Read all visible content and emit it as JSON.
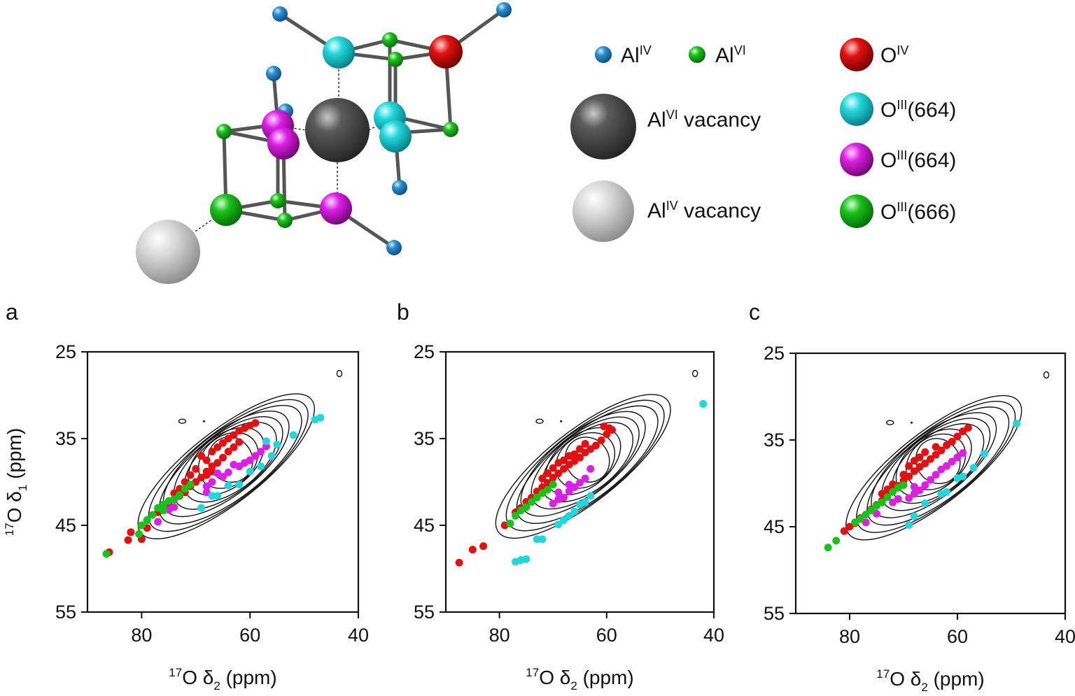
{
  "legend": {
    "items": [
      {
        "key": "al_iv",
        "label": "Al",
        "sup": "IV",
        "suffix": "",
        "color": "#2a8fd0"
      },
      {
        "key": "al_vi",
        "label": "Al",
        "sup": "VI",
        "suffix": "",
        "color": "#1fc41f"
      },
      {
        "key": "al_vi_vac",
        "label": "Al",
        "sup": "VI",
        "suffix": " vacancy",
        "color": "#5a5a5a"
      },
      {
        "key": "al_iv_vac",
        "label": "Al",
        "sup": "IV",
        "suffix": " vacancy",
        "color": "#d4d4d4"
      },
      {
        "key": "o_iv",
        "label": "O",
        "sup": "IV",
        "suffix": "",
        "color": "#e21010"
      },
      {
        "key": "o_iii_664a",
        "label": "O",
        "sup": "III",
        "suffix": "(664)",
        "color": "#21d6dc"
      },
      {
        "key": "o_iii_664b",
        "label": "O",
        "sup": "III",
        "suffix": "(664)",
        "color": "#dc1fe4"
      },
      {
        "key": "o_iii_666",
        "label": "O",
        "sup": "III",
        "suffix": "(666)",
        "color": "#19c219"
      }
    ]
  },
  "axis_labels": {
    "x_iso": "17",
    "x_sym": "O δ",
    "x_sub": "2",
    "x_unit": " (ppm)",
    "y_iso": "17",
    "y_sym": "O δ",
    "y_sub": "1",
    "y_unit": " (ppm)"
  },
  "chart_data": [
    {
      "type": "scatter",
      "panel": "a",
      "xlim": [
        90,
        40
      ],
      "ylim": [
        25,
        55
      ],
      "x_ticks": [
        "80",
        "60",
        "40"
      ],
      "y_ticks": [
        "25",
        "35",
        "45",
        "55"
      ],
      "xlabel": "17O δ2 (ppm)",
      "ylabel": "17O δ1 (ppm)",
      "contours": {
        "x0": 64,
        "y0": 38.2,
        "rx": 20,
        "ry": 2.6,
        "angle": -38,
        "levels": 9
      },
      "series": [
        {
          "color": "#e21010",
          "points": [
            [
              86,
              48.1
            ],
            [
              82,
              45.8
            ],
            [
              79,
              45.3
            ],
            [
              80,
              46.6
            ],
            [
              82.5,
              46.7
            ],
            [
              77,
              43.5
            ],
            [
              75,
              42.6
            ],
            [
              74,
              42.0
            ],
            [
              73,
              41.6
            ],
            [
              72,
              41.2
            ],
            [
              71,
              40.5
            ],
            [
              70,
              40.0
            ],
            [
              69,
              39.5
            ],
            [
              68,
              38.8
            ],
            [
              67,
              38.2
            ],
            [
              66,
              37.8
            ],
            [
              70,
              38.5
            ],
            [
              68,
              37.5
            ],
            [
              69,
              37.0
            ],
            [
              67,
              36.5
            ],
            [
              66,
              36.0
            ],
            [
              65,
              35.5
            ],
            [
              64,
              35.0
            ],
            [
              63,
              34.6
            ],
            [
              62,
              34.1
            ],
            [
              61,
              33.8
            ],
            [
              60,
              33.5
            ],
            [
              59,
              33.2
            ],
            [
              71,
              39.2
            ],
            [
              72,
              40.0
            ],
            [
              65,
              37.2
            ],
            [
              64,
              36.5
            ],
            [
              67,
              38.8
            ],
            [
              68,
              39.2
            ],
            [
              73,
              40.8
            ],
            [
              74,
              41.3
            ],
            [
              63,
              36.0
            ],
            [
              62,
              35.4
            ]
          ]
        },
        {
          "color": "#dc1fe4",
          "points": [
            [
              77,
              44.6
            ],
            [
              75,
              43.2
            ],
            [
              74,
              42.9
            ],
            [
              68,
              40.5
            ],
            [
              67,
              40.0
            ],
            [
              65,
              39.4
            ],
            [
              64,
              38.9
            ],
            [
              62,
              38.2
            ],
            [
              61,
              37.8
            ],
            [
              60,
              37.5
            ],
            [
              59,
              37.0
            ],
            [
              58,
              36.5
            ],
            [
              57,
              35.9
            ],
            [
              66,
              39.0
            ],
            [
              63,
              38.0
            ],
            [
              68,
              41.2
            ]
          ]
        },
        {
          "color": "#21d6dc",
          "points": [
            [
              69,
              43.0
            ],
            [
              67,
              41.6
            ],
            [
              66,
              41.6
            ],
            [
              64,
              40.4
            ],
            [
              62,
              40.3
            ],
            [
              60,
              38.8
            ],
            [
              58,
              38.2
            ],
            [
              56,
              37.0
            ],
            [
              55,
              35.7
            ],
            [
              52,
              34.6
            ],
            [
              48,
              32.8
            ],
            [
              47,
              32.6
            ],
            [
              57,
              35.3
            ]
          ]
        },
        {
          "color": "#19c219",
          "points": [
            [
              86.5,
              48.3
            ],
            [
              80.5,
              46.0
            ],
            [
              80,
              45.0
            ],
            [
              79,
              44.4
            ],
            [
              78,
              43.8
            ],
            [
              77,
              43.0
            ],
            [
              76,
              42.6
            ],
            [
              75,
              42.2
            ],
            [
              74,
              42.0
            ],
            [
              73,
              41.5
            ],
            [
              72,
              40.8
            ],
            [
              71,
              40.3
            ],
            [
              76,
              43.3
            ]
          ]
        }
      ]
    },
    {
      "type": "scatter",
      "panel": "b",
      "xlim": [
        90,
        40
      ],
      "ylim": [
        25,
        55
      ],
      "x_ticks": [
        "80",
        "60",
        "40"
      ],
      "y_ticks": [
        "25",
        "35",
        "45",
        "55"
      ],
      "xlabel": "17O δ2 (ppm)",
      "ylabel": "",
      "contours": {
        "x0": 64,
        "y0": 38.2,
        "rx": 20,
        "ry": 2.6,
        "angle": -38,
        "levels": 9
      },
      "series": [
        {
          "color": "#e21010",
          "points": [
            [
              87.5,
              49.3
            ],
            [
              85,
              47.8
            ],
            [
              83,
              47.4
            ],
            [
              79,
              45.0
            ],
            [
              77,
              43.5
            ],
            [
              76,
              43.0
            ],
            [
              75,
              42.3
            ],
            [
              74,
              41.8
            ],
            [
              73,
              41.1
            ],
            [
              72,
              40.6
            ],
            [
              71,
              40.1
            ],
            [
              70,
              39.5
            ],
            [
              69,
              39.0
            ],
            [
              68,
              38.5
            ],
            [
              67,
              38.0
            ],
            [
              66,
              37.6
            ],
            [
              65,
              37.2
            ],
            [
              64,
              36.6
            ],
            [
              63,
              36.2
            ],
            [
              62,
              35.8
            ],
            [
              61,
              35.2
            ],
            [
              60,
              34.5
            ],
            [
              59,
              34.0
            ],
            [
              60.5,
              33.6
            ],
            [
              59.5,
              33.8
            ],
            [
              70,
              38.4
            ],
            [
              69,
              37.8
            ],
            [
              67,
              37.0
            ],
            [
              65,
              36.2
            ],
            [
              72,
              39.6
            ],
            [
              71,
              39.0
            ],
            [
              68,
              37.5
            ],
            [
              66,
              36.8
            ],
            [
              64,
              35.6
            ]
          ]
        },
        {
          "color": "#dc1fe4",
          "points": [
            [
              70,
              42.5
            ],
            [
              69,
              42.0
            ],
            [
              68,
              41.8
            ],
            [
              67,
              41.1
            ],
            [
              66,
              40.6
            ],
            [
              65,
              40.1
            ],
            [
              64,
              39.6
            ],
            [
              63,
              38.5
            ],
            [
              69,
              41.2
            ],
            [
              67,
              40.3
            ]
          ]
        },
        {
          "color": "#21d6dc",
          "points": [
            [
              77,
              49.2
            ],
            [
              76,
              49.0
            ],
            [
              75,
              48.9
            ],
            [
              73,
              46.6
            ],
            [
              72,
              46.6
            ],
            [
              69,
              44.9
            ],
            [
              68,
              44.4
            ],
            [
              67,
              43.9
            ],
            [
              66,
              43.4
            ],
            [
              65,
              42.6
            ],
            [
              64,
              42.3
            ],
            [
              63,
              41.6
            ],
            [
              42,
              31.0
            ]
          ]
        },
        {
          "color": "#19c219",
          "points": [
            [
              78,
              44.8
            ],
            [
              77,
              43.9
            ],
            [
              76,
              43.3
            ],
            [
              75,
              42.9
            ],
            [
              74,
              42.3
            ],
            [
              73,
              41.8
            ],
            [
              72,
              41.3
            ],
            [
              71,
              40.9
            ],
            [
              70,
              40.3
            ]
          ]
        }
      ]
    },
    {
      "type": "scatter",
      "panel": "c",
      "xlim": [
        90,
        40
      ],
      "ylim": [
        25,
        55
      ],
      "x_ticks": [
        "80",
        "60",
        "40"
      ],
      "y_ticks": [
        "25",
        "35",
        "45",
        "55"
      ],
      "xlabel": "17O δ2 (ppm)",
      "ylabel": "",
      "contours": {
        "x0": 64,
        "y0": 38.2,
        "rx": 20,
        "ry": 2.6,
        "angle": -38,
        "levels": 9
      },
      "series": [
        {
          "color": "#e21010",
          "points": [
            [
              81,
              45.5
            ],
            [
              80,
              45.0
            ],
            [
              79,
              44.6
            ],
            [
              78,
              44.0
            ],
            [
              76,
              43.0
            ],
            [
              75,
              42.5
            ],
            [
              74,
              42.0
            ],
            [
              73,
              41.3
            ],
            [
              72,
              40.8
            ],
            [
              71,
              40.3
            ],
            [
              70,
              39.7
            ],
            [
              69,
              39.2
            ],
            [
              68,
              38.6
            ],
            [
              67,
              38.1
            ],
            [
              66,
              37.7
            ],
            [
              65,
              37.2
            ],
            [
              64,
              36.7
            ],
            [
              63,
              36.2
            ],
            [
              62,
              35.6
            ],
            [
              61,
              35.2
            ],
            [
              60,
              34.6
            ],
            [
              59,
              34.0
            ],
            [
              58,
              33.6
            ],
            [
              68,
              37.4
            ],
            [
              67,
              37.0
            ],
            [
              69,
              38.0
            ],
            [
              72,
              40.1
            ],
            [
              74,
              41.2
            ],
            [
              66,
              36.4
            ],
            [
              64,
              35.8
            ],
            [
              70,
              39.0
            ],
            [
              73,
              40.7
            ]
          ]
        },
        {
          "color": "#dc1fe4",
          "points": [
            [
              77,
              44.5
            ],
            [
              75,
              43.5
            ],
            [
              72,
              42.2
            ],
            [
              71,
              41.8
            ],
            [
              69,
              41.7
            ],
            [
              68,
              41.2
            ],
            [
              67,
              40.8
            ],
            [
              66,
              40.2
            ],
            [
              65,
              39.6
            ],
            [
              64,
              39.0
            ],
            [
              63,
              38.4
            ],
            [
              62,
              38.0
            ],
            [
              61,
              37.5
            ],
            [
              60,
              37.0
            ],
            [
              59,
              36.5
            ],
            [
              68,
              40.4
            ]
          ]
        },
        {
          "color": "#21d6dc",
          "points": [
            [
              69,
              44.8
            ],
            [
              68,
              43.8
            ],
            [
              66,
              42.3
            ],
            [
              63,
              41.2
            ],
            [
              62,
              41.0
            ],
            [
              60,
              39.4
            ],
            [
              59,
              39.2
            ],
            [
              57,
              38.2
            ],
            [
              55,
              36.6
            ],
            [
              49,
              33.1
            ]
          ]
        },
        {
          "color": "#19c219",
          "points": [
            [
              84,
              47.4
            ],
            [
              82.5,
              46.6
            ],
            [
              79,
              44.5
            ],
            [
              78,
              44.1
            ],
            [
              77,
              43.6
            ],
            [
              76,
              43.1
            ],
            [
              75,
              42.6
            ],
            [
              74,
              42.2
            ],
            [
              73,
              41.6
            ],
            [
              72,
              41.0
            ],
            [
              71,
              40.5
            ],
            [
              70,
              40.2
            ]
          ]
        }
      ]
    }
  ]
}
